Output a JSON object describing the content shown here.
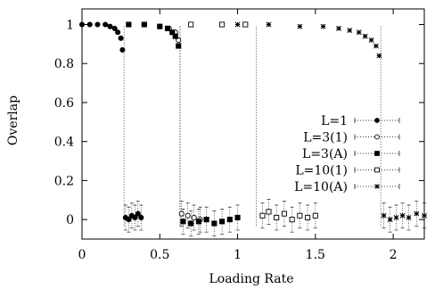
{
  "chart_data": {
    "type": "scatter",
    "xlabel": "Loading Rate",
    "ylabel": "Overlap",
    "xlim": [
      0,
      2.2
    ],
    "ylim": [
      -0.1,
      1.08
    ],
    "xticks": [
      0,
      0.5,
      1,
      1.5,
      2
    ],
    "xtick_labels": [
      "0",
      "0.5",
      "1",
      "1.5",
      "2"
    ],
    "yticks": [
      0,
      0.2,
      0.4,
      0.6,
      0.8,
      1
    ],
    "ytick_labels": [
      "0",
      "0.2",
      "0.4",
      "0.6",
      "0.8",
      "1"
    ],
    "grid": false,
    "legend_position": "right",
    "series": [
      {
        "name": "L=1",
        "marker": "filled-circle",
        "transition": 0.27,
        "points": [
          {
            "x": 0.0,
            "y": 1.0
          },
          {
            "x": 0.05,
            "y": 1.0
          },
          {
            "x": 0.1,
            "y": 1.0
          },
          {
            "x": 0.15,
            "y": 1.0
          },
          {
            "x": 0.18,
            "y": 0.99
          },
          {
            "x": 0.21,
            "y": 0.98
          },
          {
            "x": 0.23,
            "y": 0.96
          },
          {
            "x": 0.25,
            "y": 0.93
          },
          {
            "x": 0.26,
            "y": 0.87
          },
          {
            "x": 0.28,
            "y": 0.01
          },
          {
            "x": 0.3,
            "y": 0.0
          },
          {
            "x": 0.32,
            "y": 0.02
          },
          {
            "x": 0.34,
            "y": 0.01
          },
          {
            "x": 0.36,
            "y": 0.03
          },
          {
            "x": 0.38,
            "y": 0.01
          }
        ]
      },
      {
        "name": "L=3(1)",
        "marker": "open-circle",
        "transition": 0.63,
        "points": [
          {
            "x": 0.3,
            "y": 1.0
          },
          {
            "x": 0.4,
            "y": 1.0
          },
          {
            "x": 0.5,
            "y": 0.99
          },
          {
            "x": 0.56,
            "y": 0.98
          },
          {
            "x": 0.6,
            "y": 0.96
          },
          {
            "x": 0.62,
            "y": 0.92
          },
          {
            "x": 0.64,
            "y": 0.03
          },
          {
            "x": 0.68,
            "y": 0.02
          },
          {
            "x": 0.72,
            "y": 0.01
          },
          {
            "x": 0.76,
            "y": 0.0
          }
        ]
      },
      {
        "name": "L=3(A)",
        "marker": "filled-square",
        "transition": 0.63,
        "points": [
          {
            "x": 0.3,
            "y": 1.0
          },
          {
            "x": 0.4,
            "y": 1.0
          },
          {
            "x": 0.5,
            "y": 0.99
          },
          {
            "x": 0.55,
            "y": 0.98
          },
          {
            "x": 0.58,
            "y": 0.96
          },
          {
            "x": 0.6,
            "y": 0.94
          },
          {
            "x": 0.62,
            "y": 0.89
          },
          {
            "x": 0.65,
            "y": -0.01
          },
          {
            "x": 0.7,
            "y": -0.02
          },
          {
            "x": 0.75,
            "y": -0.01
          },
          {
            "x": 0.8,
            "y": 0.0
          },
          {
            "x": 0.85,
            "y": -0.02
          },
          {
            "x": 0.9,
            "y": -0.01
          },
          {
            "x": 0.95,
            "y": 0.0
          },
          {
            "x": 1.0,
            "y": 0.01
          }
        ]
      },
      {
        "name": "L=10(1)",
        "marker": "open-square",
        "transition": 1.12,
        "points": [
          {
            "x": 0.7,
            "y": 1.0
          },
          {
            "x": 0.9,
            "y": 1.0
          },
          {
            "x": 1.05,
            "y": 1.0
          },
          {
            "x": 1.16,
            "y": 0.02
          },
          {
            "x": 1.2,
            "y": 0.04
          },
          {
            "x": 1.25,
            "y": 0.01
          },
          {
            "x": 1.3,
            "y": 0.03
          },
          {
            "x": 1.35,
            "y": 0.0
          },
          {
            "x": 1.4,
            "y": 0.02
          },
          {
            "x": 1.45,
            "y": 0.01
          },
          {
            "x": 1.5,
            "y": 0.02
          }
        ]
      },
      {
        "name": "L=10(A)",
        "marker": "asterisk",
        "transition": 1.92,
        "points": [
          {
            "x": 1.0,
            "y": 1.0
          },
          {
            "x": 1.2,
            "y": 1.0
          },
          {
            "x": 1.4,
            "y": 0.99
          },
          {
            "x": 1.55,
            "y": 0.99
          },
          {
            "x": 1.65,
            "y": 0.98
          },
          {
            "x": 1.72,
            "y": 0.97
          },
          {
            "x": 1.78,
            "y": 0.96
          },
          {
            "x": 1.82,
            "y": 0.94
          },
          {
            "x": 1.86,
            "y": 0.92
          },
          {
            "x": 1.89,
            "y": 0.89
          },
          {
            "x": 1.91,
            "y": 0.84
          },
          {
            "x": 1.94,
            "y": 0.02
          },
          {
            "x": 1.98,
            "y": 0.0
          },
          {
            "x": 2.02,
            "y": 0.01
          },
          {
            "x": 2.06,
            "y": 0.02
          },
          {
            "x": 2.1,
            "y": 0.01
          },
          {
            "x": 2.15,
            "y": 0.03
          },
          {
            "x": 2.2,
            "y": 0.02
          }
        ]
      }
    ]
  }
}
